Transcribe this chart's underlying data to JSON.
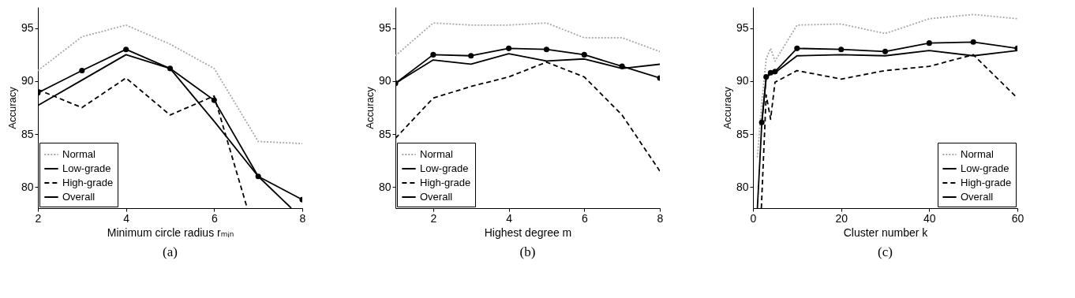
{
  "chart_data": [
    {
      "type": "line",
      "title": "(a)",
      "xlabel": "Minimum circle radius rₘᵢₙ",
      "ylabel": "Accuracy",
      "x": [
        2,
        3,
        4,
        5,
        6,
        7,
        8
      ],
      "xlim": [
        2,
        8
      ],
      "xticks": [
        2,
        4,
        6,
        8
      ],
      "ylim": [
        78,
        97
      ],
      "yticks": [
        80,
        85,
        90,
        95
      ],
      "legend": "bottom left",
      "series": [
        {
          "name": "Normal",
          "color": "#a8a8a8",
          "line_style": "dotted",
          "values": [
            91.0,
            94.2,
            95.3,
            93.5,
            91.2,
            84.3,
            84.1
          ]
        },
        {
          "name": "Low-grade",
          "color": "#000000",
          "line_style": "solid",
          "x": [
            2,
            3,
            4,
            5,
            6,
            7,
            7.75
          ],
          "values": [
            87.7,
            90.1,
            92.5,
            91.2,
            86.2,
            81.0,
            78
          ]
        },
        {
          "name": "High-grade",
          "color": "#000000",
          "line_style": "dashed",
          "x": [
            2,
            3,
            4,
            5,
            6,
            6.75
          ],
          "values": [
            89.2,
            87.5,
            90.3,
            86.8,
            88.6,
            78
          ]
        },
        {
          "name": "Overall",
          "color": "#000000",
          "line_style": "solid",
          "marker": "circle",
          "values": [
            88.9,
            91.0,
            93.0,
            91.2,
            88.2,
            81.0,
            78.8
          ]
        }
      ]
    },
    {
      "type": "line",
      "title": "(b)",
      "xlabel": "Highest degree m",
      "ylabel": "Accuracy",
      "x": [
        1,
        2,
        3,
        4,
        5,
        6,
        7,
        8
      ],
      "xlim": [
        1,
        8
      ],
      "xticks": [
        2,
        4,
        6,
        8
      ],
      "ylim": [
        78,
        97
      ],
      "yticks": [
        80,
        85,
        90,
        95
      ],
      "legend": "bottom left",
      "series": [
        {
          "name": "Normal",
          "color": "#a8a8a8",
          "line_style": "dotted",
          "values": [
            92.4,
            95.5,
            95.3,
            95.3,
            95.5,
            94.1,
            94.1,
            92.8
          ]
        },
        {
          "name": "Low-grade",
          "color": "#000000",
          "line_style": "solid",
          "values": [
            89.8,
            92.0,
            91.6,
            92.6,
            91.9,
            92.1,
            91.2,
            91.6
          ]
        },
        {
          "name": "High-grade",
          "color": "#000000",
          "line_style": "dashed",
          "values": [
            84.6,
            88.4,
            89.5,
            90.4,
            91.8,
            90.4,
            86.8,
            81.5
          ]
        },
        {
          "name": "Overall",
          "color": "#000000",
          "line_style": "solid",
          "marker": "circle",
          "values": [
            89.8,
            92.5,
            92.4,
            93.1,
            93.0,
            92.5,
            91.4,
            90.3
          ]
        }
      ]
    },
    {
      "type": "line",
      "title": "(c)",
      "xlabel": "Cluster number k",
      "ylabel": "Accuracy",
      "x": [
        1,
        2,
        3,
        4,
        5,
        10,
        20,
        30,
        40,
        50,
        60
      ],
      "xlim": [
        0,
        60
      ],
      "xticks": [
        0,
        20,
        40,
        60
      ],
      "ylim": [
        78,
        97
      ],
      "yticks": [
        80,
        85,
        90,
        95
      ],
      "legend": "bottom right",
      "series": [
        {
          "name": "Normal",
          "color": "#a8a8a8",
          "line_style": "dotted",
          "values": [
            82.8,
            88.0,
            92.1,
            93.1,
            91.9,
            95.3,
            95.4,
            94.5,
            95.9,
            96.3,
            95.9
          ]
        },
        {
          "name": "Low-grade",
          "color": "#000000",
          "line_style": "solid",
          "values": [
            78,
            86.0,
            90.3,
            90.7,
            90.8,
            92.4,
            92.5,
            92.4,
            92.9,
            92.4,
            92.9
          ]
        },
        {
          "name": "High-grade",
          "color": "#000000",
          "line_style": "dashed",
          "x": [
            1.9,
            3,
            4,
            5,
            10,
            20,
            30,
            40,
            50,
            60
          ],
          "values": [
            78,
            88.7,
            86.4,
            89.9,
            91.0,
            90.2,
            91.0,
            91.4,
            92.5,
            88.4
          ]
        },
        {
          "name": "Overall",
          "color": "#000000",
          "line_style": "solid",
          "marker": "circle",
          "x": [
            2,
            3,
            4,
            5,
            10,
            20,
            30,
            40,
            50,
            60
          ],
          "values": [
            86.1,
            90.4,
            90.8,
            90.9,
            93.1,
            93.0,
            92.8,
            93.6,
            93.7,
            93.1
          ]
        }
      ]
    }
  ]
}
